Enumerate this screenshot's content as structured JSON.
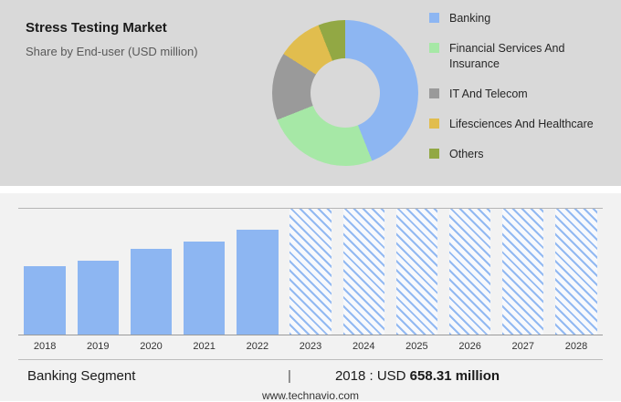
{
  "header": {
    "title": "Stress Testing Market",
    "subtitle": "Share by End-user (USD million)"
  },
  "chart_data": [
    {
      "type": "pie",
      "variant": "donut",
      "title": "Share by End-user (USD million)",
      "legend_position": "right",
      "segments": [
        {
          "label": "Banking",
          "value": 44,
          "color": "#8db6f2"
        },
        {
          "label": "Financial Services And Insurance",
          "value": 25,
          "color": "#a6e8a6"
        },
        {
          "label": "IT And Telecom",
          "value": 15,
          "color": "#9a9a9a"
        },
        {
          "label": "Lifesciences And Healthcare",
          "value": 10,
          "color": "#e1bd4e"
        },
        {
          "label": "Others",
          "value": 6,
          "color": "#92a844"
        }
      ]
    },
    {
      "type": "bar",
      "title": "Banking Segment market size by year",
      "categories": [
        "2018",
        "2019",
        "2020",
        "2021",
        "2022",
        "2023",
        "2024",
        "2025",
        "2026",
        "2027",
        "2028"
      ],
      "series": [
        {
          "name": "Banking Segment",
          "heights_pct": [
            54,
            59,
            68,
            74,
            83,
            100,
            100,
            100,
            100,
            100,
            100
          ]
        }
      ],
      "forecast_start_index": 5,
      "bar_color": "#8db6f2",
      "known_values": {
        "2018": "USD 658.31 million"
      },
      "unit": "USD million",
      "grid": "off",
      "ylim_note": "no y-axis shown; heights are relative"
    }
  ],
  "footer": {
    "segment": "Banking Segment",
    "separator": "|",
    "value_prefix": "2018 : USD",
    "value_bold": "658.31 million",
    "website": "www.technavio.com"
  }
}
